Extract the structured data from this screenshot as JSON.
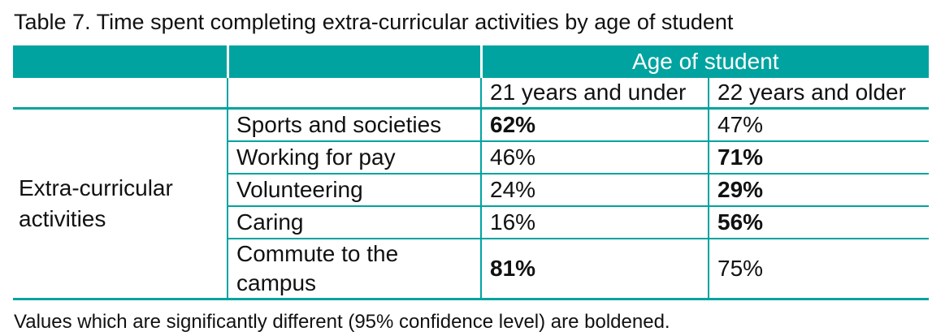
{
  "page": {
    "title": "Table 7. Time spent completing extra-curricular activities by age of student",
    "footnote": "Values which are significantly different (95% confidence level) are boldened."
  },
  "colors": {
    "teal": "#00a3a0",
    "header_text": "#ffffff",
    "text": "#111111"
  },
  "table": {
    "group_header": "Age of student",
    "column_headers": [
      "21 years and under",
      "22 years and older"
    ],
    "row_group_label": "Extra-curricular activities",
    "rows": [
      {
        "activity": "Sports and societies",
        "under21": "62%",
        "under21_bold": true,
        "over22": "47%",
        "over22_bold": false
      },
      {
        "activity": "Working for pay",
        "under21": "46%",
        "under21_bold": false,
        "over22": "71%",
        "over22_bold": true
      },
      {
        "activity": "Volunteering",
        "under21": "24%",
        "under21_bold": false,
        "over22": "29%",
        "over22_bold": true
      },
      {
        "activity": "Caring",
        "under21": "16%",
        "under21_bold": false,
        "over22": "56%",
        "over22_bold": true
      },
      {
        "activity": "Commute to the campus",
        "under21": "81%",
        "under21_bold": true,
        "over22": "75%",
        "over22_bold": false
      }
    ]
  },
  "chart_data": {
    "type": "table",
    "title": "Table 7. Time spent completing extra-curricular activities by age of student",
    "column_group": "Age of student",
    "row_group": "Extra-curricular activities",
    "categories": [
      "Sports and societies",
      "Working for pay",
      "Volunteering",
      "Caring",
      "Commute to the campus"
    ],
    "series": [
      {
        "name": "21 years and under",
        "values": [
          62,
          46,
          24,
          16,
          81
        ],
        "bold_flags": [
          true,
          false,
          false,
          false,
          true
        ]
      },
      {
        "name": "22 years and older",
        "values": [
          47,
          71,
          29,
          56,
          75
        ],
        "bold_flags": [
          false,
          true,
          true,
          true,
          false
        ]
      }
    ],
    "note": "Values which are significantly different (95% confidence level) are boldened."
  }
}
